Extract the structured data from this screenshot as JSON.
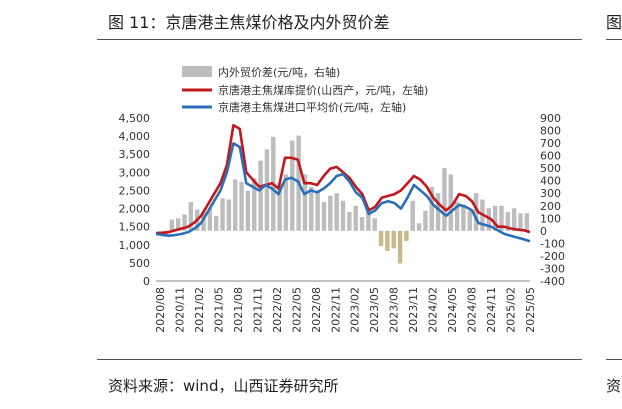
{
  "title": "图 11：京唐港主焦煤价格及内外贸价差",
  "next_title_fragment": "图",
  "source": "资料来源：wind，山西证券研究所",
  "next_source_fragment": "资",
  "colors": {
    "bar": "#bdbdbd",
    "bar_negative": "#c8b98c",
    "line1": "#c0181d",
    "line2": "#2a6fb8"
  },
  "chart_data": {
    "type": "bar+line",
    "legend": [
      "内外贸价差(元/吨，右轴)",
      "京唐港主焦煤库提价(山西产，元/吨，左轴)",
      "京唐港主焦煤进口平均价(元/吨，左轴)"
    ],
    "legend_position": "top-left",
    "x_tick_labels": [
      "2020/08",
      "2020/11",
      "2021/02",
      "2021/05",
      "2021/08",
      "2021/11",
      "2022/02",
      "2022/05",
      "2022/08",
      "2022/11",
      "2023/02",
      "2023/05",
      "2023/08",
      "2023/11",
      "2024/02",
      "2024/05",
      "2024/08",
      "2024/11",
      "2025/02",
      "2025/05"
    ],
    "y_left": {
      "range": [
        0,
        4500
      ],
      "ticks": [
        "0",
        "500",
        "1,000",
        "1,500",
        "2,000",
        "2,500",
        "3,000",
        "3,500",
        "4,000",
        "4,500"
      ]
    },
    "y_right": {
      "range": [
        -400,
        900
      ],
      "ticks": [
        "-400",
        "-300",
        "-200",
        "-100",
        "0",
        "100",
        "200",
        "300",
        "400",
        "500",
        "600",
        "700",
        "800",
        "900"
      ]
    },
    "series": [
      {
        "name": "京唐港主焦煤库提价(山西产，元/吨，左轴)",
        "axis": "left",
        "values": [
          1320,
          1330,
          1350,
          1400,
          1450,
          1500,
          1620,
          1800,
          2100,
          2400,
          2700,
          3200,
          4300,
          4200,
          3000,
          2800,
          2600,
          2650,
          2700,
          2550,
          3400,
          3400,
          3350,
          2700,
          2700,
          2650,
          2900,
          3100,
          3150,
          3000,
          2850,
          2600,
          2400,
          1950,
          2050,
          2300,
          2350,
          2400,
          2500,
          2700,
          2900,
          2800,
          2600,
          2300,
          2100,
          1950,
          2100,
          2400,
          2350,
          2200,
          1900,
          1800,
          1700,
          1500,
          1500,
          1450,
          1420,
          1400,
          1350
        ]
      },
      {
        "name": "京唐港主焦煤进口平均价(元/吨，左轴)",
        "axis": "left",
        "values": [
          1300,
          1270,
          1250,
          1270,
          1300,
          1350,
          1450,
          1600,
          1900,
          2200,
          2500,
          3000,
          3800,
          3700,
          2700,
          2600,
          2500,
          2650,
          2550,
          2400,
          2800,
          2850,
          2750,
          2400,
          2500,
          2450,
          2550,
          2700,
          2900,
          2950,
          2750,
          2450,
          2300,
          1850,
          1950,
          2150,
          2200,
          2150,
          2000,
          2300,
          2650,
          2500,
          2350,
          2100,
          1950,
          1800,
          1950,
          2100,
          2050,
          1950,
          1600,
          1550,
          1500,
          1400,
          1300,
          1250,
          1200,
          1150,
          1100
        ]
      },
      {
        "name": "内外贸价差(元/吨，右轴)",
        "axis": "right",
        "type": "bar",
        "values": [
          0,
          -40,
          90,
          100,
          130,
          230,
          170,
          150,
          180,
          120,
          260,
          250,
          410,
          390,
          320,
          420,
          560,
          650,
          750,
          380,
          450,
          720,
          760,
          450,
          350,
          310,
          230,
          280,
          300,
          240,
          150,
          200,
          110,
          170,
          100,
          -120,
          -160,
          -140,
          -260,
          -80,
          240,
          60,
          160,
          350,
          300,
          500,
          450,
          230,
          210,
          160,
          300,
          250,
          180,
          200,
          200,
          150,
          180,
          140,
          140
        ]
      }
    ]
  }
}
